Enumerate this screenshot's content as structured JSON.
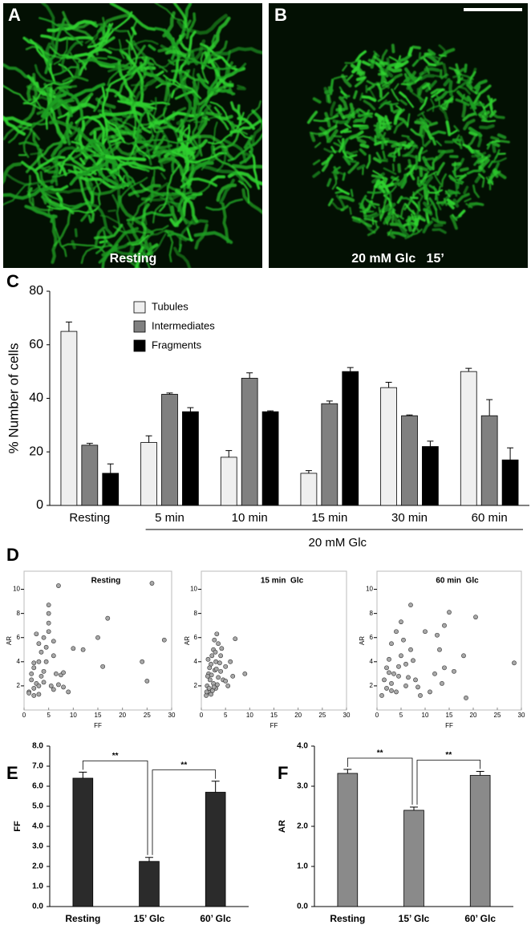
{
  "images": [
    {
      "panel_label": "A",
      "caption": "Resting"
    },
    {
      "panel_label": "B",
      "caption": "20 mM Glc   15’"
    }
  ],
  "chart_data": [
    {
      "type": "bar",
      "panel_label": "C",
      "ylabel": "% Number of cells",
      "categories": [
        "Resting",
        "5 min",
        "10 min",
        "15 min",
        "30 min",
        "60 min"
      ],
      "series": [
        {
          "name": "Tubules",
          "color": "#efefef",
          "values": [
            65,
            23.5,
            18,
            12,
            44,
            50
          ],
          "errors": [
            3.5,
            2.5,
            2.5,
            1,
            2,
            1.2
          ]
        },
        {
          "name": "Intermediates",
          "color": "#808080",
          "values": [
            22.5,
            41.5,
            47.5,
            38,
            33.5,
            33.5
          ],
          "errors": [
            0.7,
            0.5,
            2,
            1,
            0.3,
            6
          ]
        },
        {
          "name": "Fragments",
          "color": "#000000",
          "values": [
            12,
            35,
            35,
            50,
            22,
            17
          ],
          "errors": [
            3.5,
            1.5,
            0.3,
            1.5,
            2,
            4.5
          ]
        }
      ],
      "group_label": "20 mM Glc",
      "ylim": [
        0,
        80
      ],
      "yticks": [
        0,
        20,
        40,
        60,
        80
      ]
    },
    {
      "type": "scatter",
      "panel_label": "D",
      "title": "Resting",
      "xlabel": "FF",
      "ylabel": "AR",
      "color": "#a8a8a8",
      "x": [
        1,
        1.5,
        2,
        2,
        2.5,
        3,
        3,
        3.5,
        4,
        4,
        4.5,
        5,
        5,
        5.5,
        6,
        6,
        6.5,
        7,
        7.5,
        8,
        9,
        10,
        12,
        15,
        16,
        17,
        24,
        25,
        26,
        28.5,
        1.5,
        2,
        3,
        4,
        5,
        3,
        2.5,
        4.5,
        6,
        7,
        8,
        5,
        1,
        3.5,
        2
      ],
      "values": [
        1.5,
        2.5,
        1.8,
        3.5,
        2.2,
        4,
        1.3,
        2.8,
        6,
        3.2,
        5.2,
        8.7,
        6.5,
        2,
        4.5,
        1.7,
        3,
        10.3,
        2.9,
        1.9,
        1.5,
        5.1,
        5,
        6,
        3.6,
        7.6,
        4,
        2.4,
        10.5,
        5.8,
        3,
        1.2,
        5.5,
        2.3,
        7.2,
        2,
        6.3,
        4,
        5.7,
        2.1,
        3.1,
        8,
        1.4,
        4.8,
        3.9
      ],
      "xlim": [
        0,
        30
      ],
      "xticks": [
        0,
        5,
        10,
        15,
        20,
        25,
        30
      ],
      "ylim": [
        0,
        11.5
      ],
      "yticks": [
        2,
        4,
        6,
        8,
        10
      ]
    },
    {
      "type": "scatter",
      "title": "15 min  Glc",
      "xlabel": "FF",
      "ylabel": "AR",
      "color": "#a8a8a8",
      "x": [
        1,
        1.2,
        1.5,
        1.5,
        1.8,
        2,
        2,
        2.2,
        2.5,
        2.5,
        2.8,
        3,
        3,
        3.2,
        3.5,
        3.5,
        4,
        4,
        4.5,
        5,
        5.5,
        6,
        7,
        9,
        1.3,
        1.7,
        2.3,
        2.7,
        3.3,
        3.8,
        1.1,
        1.4,
        2.1,
        2.6,
        3.1,
        4.2,
        5,
        6.5,
        2.9,
        1.6
      ],
      "values": [
        1.2,
        2,
        1.5,
        3,
        2.5,
        1.3,
        3.8,
        4.5,
        2.2,
        5,
        3.3,
        1.8,
        4,
        6.3,
        2.7,
        5.5,
        3.2,
        4.5,
        2.5,
        3.6,
        2,
        4,
        5.9,
        3,
        2.8,
        3.5,
        1.6,
        5.8,
        2.1,
        3.9,
        1.5,
        4.2,
        2.9,
        1.9,
        3.4,
        5.1,
        2.4,
        2.8,
        4.8,
        1.8
      ],
      "xlim": [
        0,
        30
      ],
      "xticks": [
        0,
        5,
        10,
        15,
        20,
        25,
        30
      ],
      "ylim": [
        0,
        11.5
      ],
      "yticks": [
        2,
        4,
        6,
        8,
        10
      ]
    },
    {
      "type": "scatter",
      "title": "60 min  Glc",
      "xlabel": "FF",
      "ylabel": "AR",
      "color": "#a8a8a8",
      "x": [
        1,
        1.5,
        2,
        2,
        2.5,
        3,
        3,
        3.5,
        4,
        4,
        4.5,
        5,
        5,
        6,
        6,
        7,
        7,
        8,
        9,
        10,
        11,
        12,
        13,
        14,
        14,
        15,
        16,
        18,
        18.5,
        20.5,
        28.5,
        3,
        2.5,
        5.5,
        6.5,
        8.5,
        12.5,
        13.5,
        4.5,
        7.5
      ],
      "values": [
        1.2,
        2.5,
        3.5,
        1.8,
        4.2,
        2.2,
        5.5,
        3,
        6.5,
        1.5,
        2.8,
        4.5,
        7.3,
        2,
        3.8,
        8.7,
        5,
        2.5,
        1.2,
        6.5,
        1.5,
        3,
        5,
        7,
        3.5,
        8.1,
        3.2,
        4.5,
        1,
        7.7,
        3.9,
        1.6,
        3.1,
        5.8,
        2.7,
        1.9,
        6.2,
        2.2,
        3.6,
        4.1
      ],
      "xlim": [
        0,
        30
      ],
      "xticks": [
        0,
        5,
        10,
        15,
        20,
        25,
        30
      ],
      "ylim": [
        0,
        11.5
      ],
      "yticks": [
        2,
        4,
        6,
        8,
        10
      ]
    },
    {
      "type": "bar",
      "panel_label": "E",
      "ylabel": "FF",
      "color": "#2b2b2b",
      "categories": [
        "Resting",
        "15’ Glc",
        "60’ Glc"
      ],
      "values": [
        6.4,
        2.25,
        5.7
      ],
      "errors": [
        0.3,
        0.2,
        0.55
      ],
      "significance": [
        "**",
        "**"
      ],
      "ylim": [
        0,
        8
      ],
      "yticks": [
        {
          "value": 0,
          "label": "0.0"
        },
        {
          "value": 1,
          "label": "1.0"
        },
        {
          "value": 2,
          "label": "2.0"
        },
        {
          "value": 3,
          "label": "3.0"
        },
        {
          "value": 4,
          "label": "4.0"
        },
        {
          "value": 5,
          "label": "5.0"
        },
        {
          "value": 6,
          "label": "6.0"
        },
        {
          "value": 7,
          "label": "7.0"
        },
        {
          "value": 8,
          "label": "8.0"
        }
      ]
    },
    {
      "type": "bar",
      "panel_label": "F",
      "ylabel": "AR",
      "color": "#8a8a8a",
      "categories": [
        "Resting",
        "15’ Glc",
        "60’ Glc"
      ],
      "values": [
        3.32,
        2.4,
        3.27
      ],
      "errors": [
        0.1,
        0.08,
        0.1
      ],
      "significance": [
        "**",
        "**"
      ],
      "ylim": [
        0,
        4
      ],
      "yticks": [
        {
          "value": 0,
          "label": "0.0"
        },
        {
          "value": 1,
          "label": "1.0"
        },
        {
          "value": 2,
          "label": "2.0"
        },
        {
          "value": 3,
          "label": "3.0"
        },
        {
          "value": 4,
          "label": "4.0"
        }
      ]
    }
  ]
}
